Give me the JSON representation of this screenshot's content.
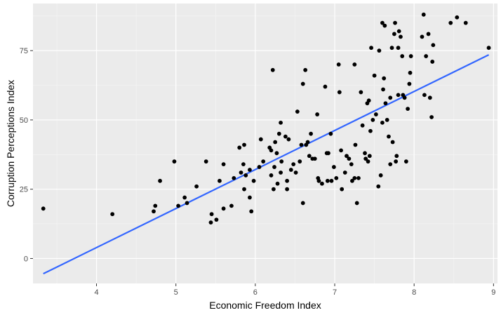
{
  "chart_data": {
    "type": "scatter",
    "xlabel": "Economic Freedom Index",
    "ylabel": "Corruption Perceptions Index",
    "xlim": [
      3.2,
      9.05
    ],
    "ylim": [
      -9,
      92
    ],
    "x_ticks": [
      4,
      5,
      6,
      7,
      8,
      9
    ],
    "y_ticks": [
      0,
      25,
      50,
      75
    ],
    "x_tick_labels": [
      "4",
      "5",
      "6",
      "7",
      "8",
      "9"
    ],
    "y_tick_labels": [
      "0",
      "25",
      "50",
      "75"
    ],
    "grid": true,
    "panel_background": "#ebebeb",
    "point_color": "#000000",
    "trend_color": "#3366ff",
    "trend_line": {
      "x": [
        3.33,
        8.94
      ],
      "y": [
        -5.5,
        73.5
      ]
    },
    "points": [
      [
        3.33,
        18
      ],
      [
        4.2,
        16
      ],
      [
        4.72,
        17
      ],
      [
        4.74,
        19
      ],
      [
        4.8,
        28
      ],
      [
        4.98,
        35
      ],
      [
        5.03,
        19
      ],
      [
        5.11,
        22
      ],
      [
        5.14,
        20
      ],
      [
        5.26,
        26
      ],
      [
        5.38,
        35
      ],
      [
        5.44,
        13
      ],
      [
        5.45,
        16
      ],
      [
        5.51,
        14
      ],
      [
        5.55,
        28
      ],
      [
        5.6,
        34
      ],
      [
        5.6,
        18
      ],
      [
        5.7,
        19
      ],
      [
        5.73,
        29
      ],
      [
        5.8,
        40
      ],
      [
        5.82,
        31
      ],
      [
        5.85,
        34
      ],
      [
        5.86,
        41
      ],
      [
        5.86,
        25
      ],
      [
        5.88,
        30
      ],
      [
        5.93,
        32
      ],
      [
        5.93,
        22
      ],
      [
        5.95,
        17
      ],
      [
        5.98,
        28
      ],
      [
        6.05,
        33
      ],
      [
        6.07,
        43
      ],
      [
        6.1,
        35
      ],
      [
        6.18,
        40
      ],
      [
        6.2,
        39
      ],
      [
        6.22,
        68
      ],
      [
        6.2,
        30
      ],
      [
        6.23,
        25
      ],
      [
        6.24,
        33
      ],
      [
        6.25,
        42
      ],
      [
        6.27,
        38
      ],
      [
        6.28,
        27
      ],
      [
        6.3,
        45
      ],
      [
        6.32,
        49
      ],
      [
        6.32,
        31
      ],
      [
        6.33,
        35
      ],
      [
        6.38,
        44
      ],
      [
        6.4,
        28
      ],
      [
        6.4,
        25
      ],
      [
        6.42,
        43
      ],
      [
        6.45,
        32
      ],
      [
        6.48,
        34
      ],
      [
        6.51,
        31
      ],
      [
        6.53,
        53
      ],
      [
        6.56,
        35
      ],
      [
        6.58,
        41
      ],
      [
        6.6,
        20
      ],
      [
        6.6,
        63
      ],
      [
        6.63,
        68
      ],
      [
        6.64,
        41
      ],
      [
        6.66,
        42
      ],
      [
        6.68,
        37
      ],
      [
        6.7,
        45
      ],
      [
        6.72,
        36
      ],
      [
        6.75,
        36
      ],
      [
        6.78,
        52
      ],
      [
        6.79,
        29
      ],
      [
        6.8,
        28
      ],
      [
        6.84,
        27
      ],
      [
        6.88,
        62
      ],
      [
        6.9,
        38
      ],
      [
        6.91,
        28
      ],
      [
        6.92,
        38
      ],
      [
        6.95,
        45
      ],
      [
        6.96,
        28
      ],
      [
        6.99,
        33
      ],
      [
        7.02,
        29
      ],
      [
        7.05,
        70
      ],
      [
        7.06,
        60
      ],
      [
        7.08,
        39
      ],
      [
        7.09,
        25
      ],
      [
        7.13,
        31
      ],
      [
        7.15,
        37
      ],
      [
        7.18,
        36
      ],
      [
        7.21,
        34
      ],
      [
        7.22,
        28
      ],
      [
        7.25,
        29
      ],
      [
        7.25,
        70
      ],
      [
        7.26,
        41
      ],
      [
        7.28,
        20
      ],
      [
        7.3,
        29
      ],
      [
        7.33,
        60
      ],
      [
        7.35,
        48
      ],
      [
        7.38,
        38
      ],
      [
        7.39,
        36
      ],
      [
        7.41,
        56
      ],
      [
        7.42,
        35
      ],
      [
        7.43,
        57
      ],
      [
        7.44,
        37
      ],
      [
        7.45,
        46
      ],
      [
        7.46,
        76
      ],
      [
        7.48,
        50
      ],
      [
        7.5,
        66
      ],
      [
        7.52,
        52
      ],
      [
        7.55,
        26
      ],
      [
        7.56,
        75
      ],
      [
        7.58,
        30
      ],
      [
        7.6,
        85
      ],
      [
        7.6,
        49
      ],
      [
        7.61,
        61
      ],
      [
        7.62,
        65
      ],
      [
        7.63,
        84
      ],
      [
        7.64,
        56
      ],
      [
        7.66,
        50
      ],
      [
        7.68,
        44
      ],
      [
        7.7,
        34
      ],
      [
        7.7,
        58
      ],
      [
        7.72,
        76
      ],
      [
        7.73,
        42
      ],
      [
        7.75,
        81
      ],
      [
        7.76,
        85
      ],
      [
        7.77,
        35
      ],
      [
        7.78,
        37
      ],
      [
        7.8,
        76
      ],
      [
        7.8,
        59
      ],
      [
        7.81,
        82
      ],
      [
        7.83,
        80
      ],
      [
        7.85,
        73
      ],
      [
        7.86,
        59
      ],
      [
        7.88,
        58
      ],
      [
        7.9,
        35
      ],
      [
        7.92,
        54
      ],
      [
        7.94,
        63
      ],
      [
        7.95,
        67
      ],
      [
        7.96,
        73
      ],
      [
        8.1,
        80
      ],
      [
        8.12,
        88
      ],
      [
        8.13,
        59
      ],
      [
        8.15,
        73
      ],
      [
        8.18,
        81
      ],
      [
        8.2,
        58
      ],
      [
        8.22,
        51
      ],
      [
        8.23,
        71
      ],
      [
        8.24,
        77
      ],
      [
        8.46,
        85
      ],
      [
        8.54,
        87
      ],
      [
        8.65,
        85
      ],
      [
        8.94,
        76
      ]
    ]
  }
}
